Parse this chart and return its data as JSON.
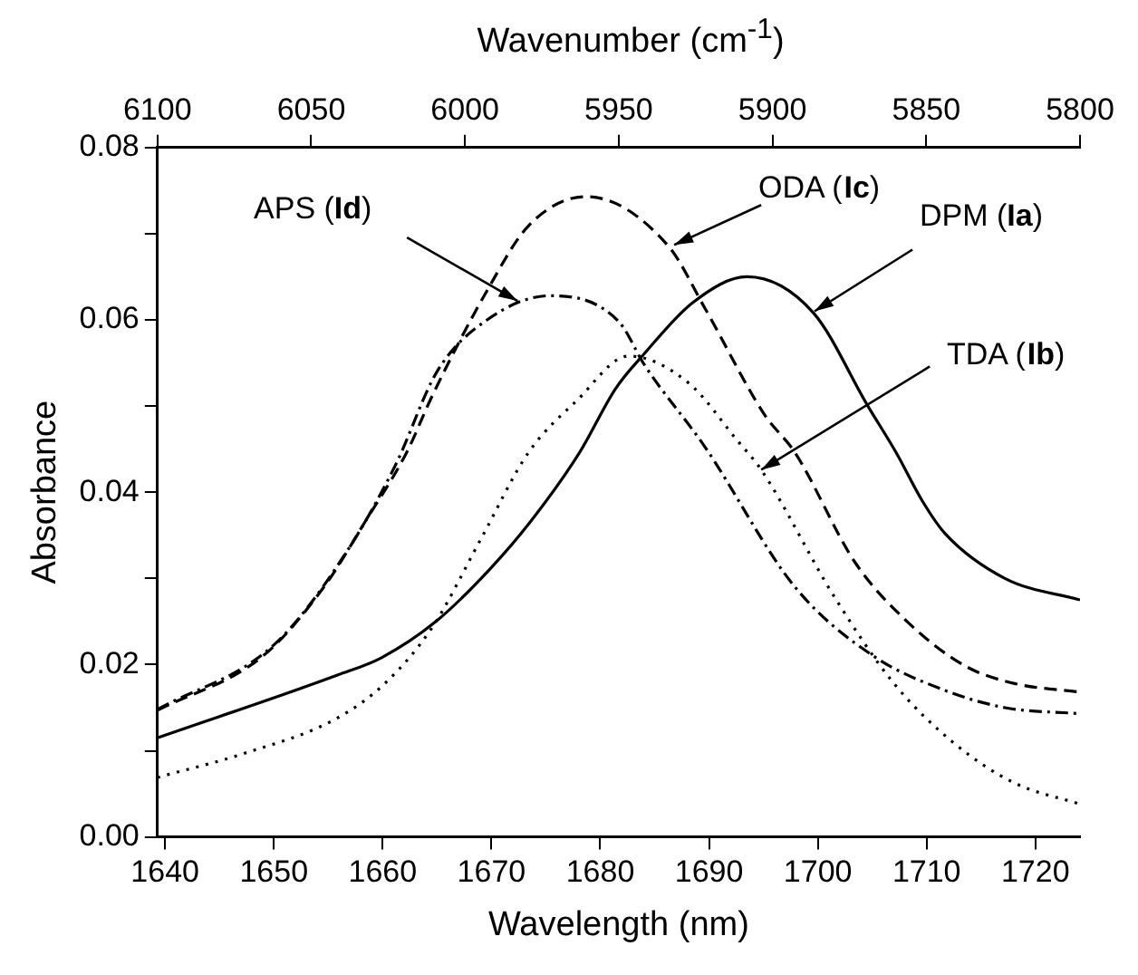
{
  "chart_data": {
    "type": "line",
    "xlabel": "Wavelength (nm)",
    "ylabel": "Absorbance",
    "x2label": "Wavenumber (cm$^{-1}$)",
    "xlim": [
      1639.3,
      1724.1
    ],
    "xticks": [
      1640,
      1650,
      1660,
      1670,
      1680,
      1690,
      1700,
      1710,
      1720
    ],
    "x2lim": [
      6100,
      5800
    ],
    "x2ticks": [
      6100,
      6050,
      6000,
      5950,
      5900,
      5850,
      5800
    ],
    "ylim": [
      0,
      0.08
    ],
    "yticks": [
      {
        "value": 0,
        "label": "0.00"
      },
      {
        "value": 0.01,
        "label": null
      },
      {
        "value": 0.02,
        "label": "0.02"
      },
      {
        "value": 0.03,
        "label": null
      },
      {
        "value": 0.04,
        "label": "0.04"
      },
      {
        "value": 0.05,
        "label": null
      },
      {
        "value": 0.06,
        "label": "0.06"
      },
      {
        "value": 0.07,
        "label": null
      },
      {
        "value": 0.08,
        "label": "0.08"
      }
    ],
    "grid": false,
    "legend": false,
    "marker": "none",
    "series": [
      {
        "color": "#000000",
        "line_style": "solid",
        "x": [
          1639.3,
          1655.9,
          1659.9,
          1664.9,
          1669.8,
          1673.6,
          1678.1,
          1681.4,
          1684,
          1688.5,
          1693.5,
          1699.6,
          1704.6,
          1707.2,
          1709.6,
          1711.7,
          1717.2,
          1724.1
        ],
        "values": [
          0.0115,
          0.0188,
          0.0208,
          0.025,
          0.031,
          0.0366,
          0.0446,
          0.052,
          0.056,
          0.062,
          0.065,
          0.0608,
          0.05,
          0.0446,
          0.039,
          0.0352,
          0.03,
          0.0275
        ]
      },
      {
        "color": "#000000",
        "line_style": "dotted",
        "x": [
          1639.3,
          1647.3,
          1655.7,
          1660.2,
          1664.6,
          1669,
          1673.4,
          1677.9,
          1682.6,
          1688.1,
          1692.6,
          1694.8,
          1701.5,
          1707,
          1712.5,
          1718,
          1724.1
        ],
        "values": [
          0.0069,
          0.0097,
          0.0137,
          0.0178,
          0.0244,
          0.0345,
          0.0446,
          0.0507,
          0.0558,
          0.0527,
          0.046,
          0.0426,
          0.0279,
          0.0178,
          0.0109,
          0.0063,
          0.0038
        ]
      },
      {
        "color": "#000000",
        "line_style": "dashed",
        "x": [
          1639.3,
          1649,
          1654.6,
          1658.4,
          1662.2,
          1664.6,
          1669.6,
          1673.4,
          1678.7,
          1686.3,
          1689.6,
          1695.1,
          1697.9,
          1703.4,
          1708.2,
          1713.6,
          1718.1,
          1724.1
        ],
        "values": [
          0.0147,
          0.021,
          0.029,
          0.0366,
          0.0446,
          0.0513,
          0.0634,
          0.0709,
          0.0743,
          0.0685,
          0.0614,
          0.049,
          0.0446,
          0.0319,
          0.025,
          0.0198,
          0.0178,
          0.0168
        ]
      },
      {
        "color": "#000000",
        "line_style": "dashdot",
        "x": [
          1639.3,
          1650.1,
          1656.7,
          1661.2,
          1665,
          1669.6,
          1675.4,
          1681.7,
          1684.1,
          1689.6,
          1697.9,
          1705.1,
          1711.7,
          1717.2,
          1724.1
        ],
        "values": [
          0.0148,
          0.0224,
          0.0331,
          0.0432,
          0.054,
          0.06,
          0.0628,
          0.0598,
          0.0547,
          0.0453,
          0.029,
          0.021,
          0.017,
          0.015,
          0.0143
        ]
      }
    ],
    "annotations": [
      {
        "text": "APS (Id)",
        "x": 1672.4,
        "y": 0.0622
      },
      {
        "text": "ODA (Ic)",
        "x": 1686.8,
        "y": 0.0687
      },
      {
        "text": "DPM (Ia)",
        "x": 1699.7,
        "y": 0.061
      },
      {
        "text": "TDA (Ib)",
        "x": 1694.8,
        "y": 0.0426
      }
    ]
  }
}
